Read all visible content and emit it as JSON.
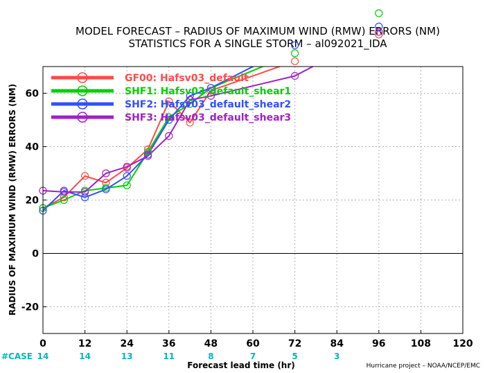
{
  "title_lines": [
    "MODEL FORECAST – RADIUS OF MAXIMUM WIND (RMW) ERRORS (NM)",
    "STATISTICS FOR A SINGLE STORM – al092021_IDA"
  ],
  "credit": "Hurricane project – NOAA/NCEP/EMC",
  "case_label": "#CASE",
  "case_counts": [
    {
      "x": 0,
      "label": "14"
    },
    {
      "x": 12,
      "label": "14"
    },
    {
      "x": 24,
      "label": "13"
    },
    {
      "x": 36,
      "label": "11"
    },
    {
      "x": 48,
      "label": "8"
    },
    {
      "x": 60,
      "label": "7"
    },
    {
      "x": 72,
      "label": "5"
    },
    {
      "x": 84,
      "label": "3"
    }
  ],
  "colors": {
    "case_text": "#00b8b8",
    "zero_line": "#000000",
    "grid": "#b0b0b0"
  },
  "chart_data": {
    "type": "line",
    "title": "MODEL FORECAST – RADIUS OF MAXIMUM WIND (RMW) ERRORS (NM)",
    "subtitle": "STATISTICS FOR A SINGLE STORM – al092021_IDA",
    "xlabel": "Forecast lead time (hr)",
    "ylabel": "RADIUS OF MAXIMUM WIND (RMW) ERRORS (NM)",
    "xlim": [
      0,
      120
    ],
    "ylim": [
      -30,
      70
    ],
    "xticks": [
      0,
      12,
      24,
      36,
      48,
      60,
      72,
      84,
      96,
      108,
      120
    ],
    "yticks": [
      -20,
      0,
      20,
      40,
      60
    ],
    "grid": true,
    "legend_position": "top-left",
    "series": [
      {
        "name": "GF00: Hafsv03_default",
        "color": "#ff4a4a",
        "x": [
          0,
          6,
          12,
          18,
          24,
          30,
          36,
          42,
          48,
          72,
          96
        ],
        "y": [
          17,
          21,
          29,
          26.5,
          32,
          39,
          57,
          49,
          61,
          72,
          82
        ]
      },
      {
        "name": "SHF1: Hafsv03_default_shear1",
        "color": "#00d000",
        "x": [
          0,
          6,
          12,
          18,
          24,
          30,
          36,
          42,
          48,
          72,
          96
        ],
        "y": [
          17,
          20,
          23.5,
          24.5,
          25.5,
          38,
          51,
          56,
          62,
          75,
          90
        ]
      },
      {
        "name": "SHF2: Hafsv03_default_shear2",
        "color": "#3050ff",
        "x": [
          0,
          6,
          12,
          18,
          24,
          30,
          36,
          42,
          48,
          72,
          96
        ],
        "y": [
          16,
          23.5,
          21,
          24,
          29,
          37,
          50,
          59,
          62,
          78,
          85
        ]
      },
      {
        "name": "SHF3: Hafsv03_default_shear3",
        "color": "#a020c8",
        "x": [
          0,
          6,
          12,
          18,
          24,
          30,
          36,
          42,
          48,
          72,
          96
        ],
        "y": [
          23.5,
          23,
          23,
          30,
          32.5,
          36.5,
          44,
          57.5,
          59,
          66.5,
          83
        ]
      }
    ]
  }
}
